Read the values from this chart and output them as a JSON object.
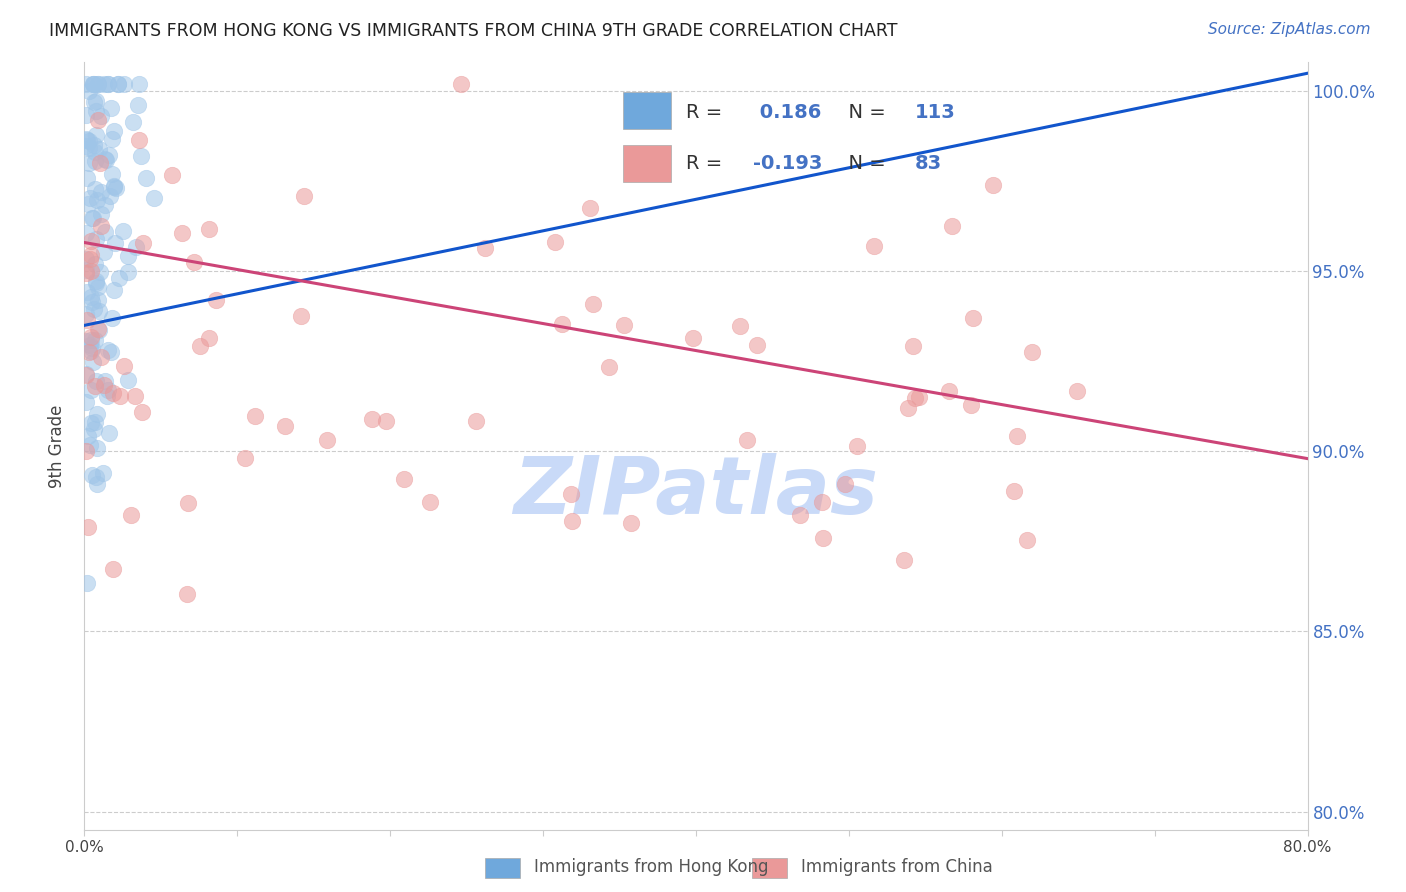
{
  "title": "IMMIGRANTS FROM HONG KONG VS IMMIGRANTS FROM CHINA 9TH GRADE CORRELATION CHART",
  "source": "Source: ZipAtlas.com",
  "ylabel": "9th Grade",
  "xmin": 0.0,
  "xmax": 0.8,
  "ymin": 0.795,
  "ymax": 1.008,
  "ytick_vals": [
    0.8,
    0.85,
    0.9,
    0.95,
    1.0
  ],
  "ytick_labels": [
    "80.0%",
    "85.0%",
    "90.0%",
    "95.0%",
    "100.0%"
  ],
  "xtick_vals": [
    0.0,
    0.1,
    0.2,
    0.3,
    0.4,
    0.5,
    0.6,
    0.7,
    0.8
  ],
  "xtick_labels": [
    "0.0%",
    "",
    "",
    "",
    "",
    "",
    "",
    "",
    "80.0%"
  ],
  "blue_R": 0.186,
  "blue_N": 113,
  "pink_R": -0.193,
  "pink_N": 83,
  "blue_scatter_color": "#9fc5e8",
  "pink_scatter_color": "#ea9999",
  "blue_line_color": "#1155cc",
  "pink_line_color": "#cc4477",
  "blue_legend_color": "#6fa8dc",
  "pink_legend_color": "#ea9999",
  "label_color": "#4472c4",
  "text_color": "#444444",
  "grid_color": "#cccccc",
  "watermark_text": "ZIPatlas",
  "watermark_color": "#c9daf8",
  "legend_blue_label": "Immigrants from Hong Kong",
  "legend_pink_label": "Immigrants from China",
  "blue_line_x0": 0.0,
  "blue_line_x1": 0.8,
  "blue_line_y0": 0.935,
  "blue_line_y1": 1.005,
  "pink_line_x0": 0.0,
  "pink_line_x1": 0.8,
  "pink_line_y0": 0.958,
  "pink_line_y1": 0.898
}
